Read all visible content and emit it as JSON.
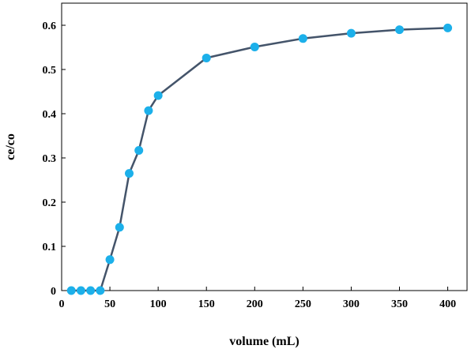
{
  "chart_data": {
    "type": "line",
    "title": "",
    "xlabel": "volume (mL)",
    "ylabel": "ce/co",
    "xlim": [
      0,
      420
    ],
    "ylim": [
      0,
      0.6
    ],
    "x_ticks": [
      0,
      50,
      100,
      150,
      200,
      250,
      300,
      350,
      400
    ],
    "y_ticks": [
      0,
      0.1,
      0.2,
      0.3,
      0.4,
      0.5,
      0.6
    ],
    "x_tick_labels": [
      "0",
      "50",
      "100",
      "150",
      "200",
      "250",
      "300",
      "350",
      "400"
    ],
    "y_tick_labels": [
      "0",
      "0.1",
      "0.2",
      "0.3",
      "0.4",
      "0.5",
      "0.6"
    ],
    "grid": false,
    "legend": "none",
    "series": [
      {
        "x": [
          10,
          20,
          30,
          40,
          50,
          60,
          70,
          80,
          90,
          100,
          150,
          200,
          250,
          300,
          350,
          400
        ],
        "values": [
          0,
          0,
          0,
          0,
          0.07,
          0.143,
          0.265,
          0.317,
          0.407,
          0.441,
          0.526,
          0.551,
          0.57,
          0.582,
          0.59,
          0.594
        ],
        "line_color": "#44546a",
        "marker_color": "#1cb0ea"
      }
    ]
  }
}
